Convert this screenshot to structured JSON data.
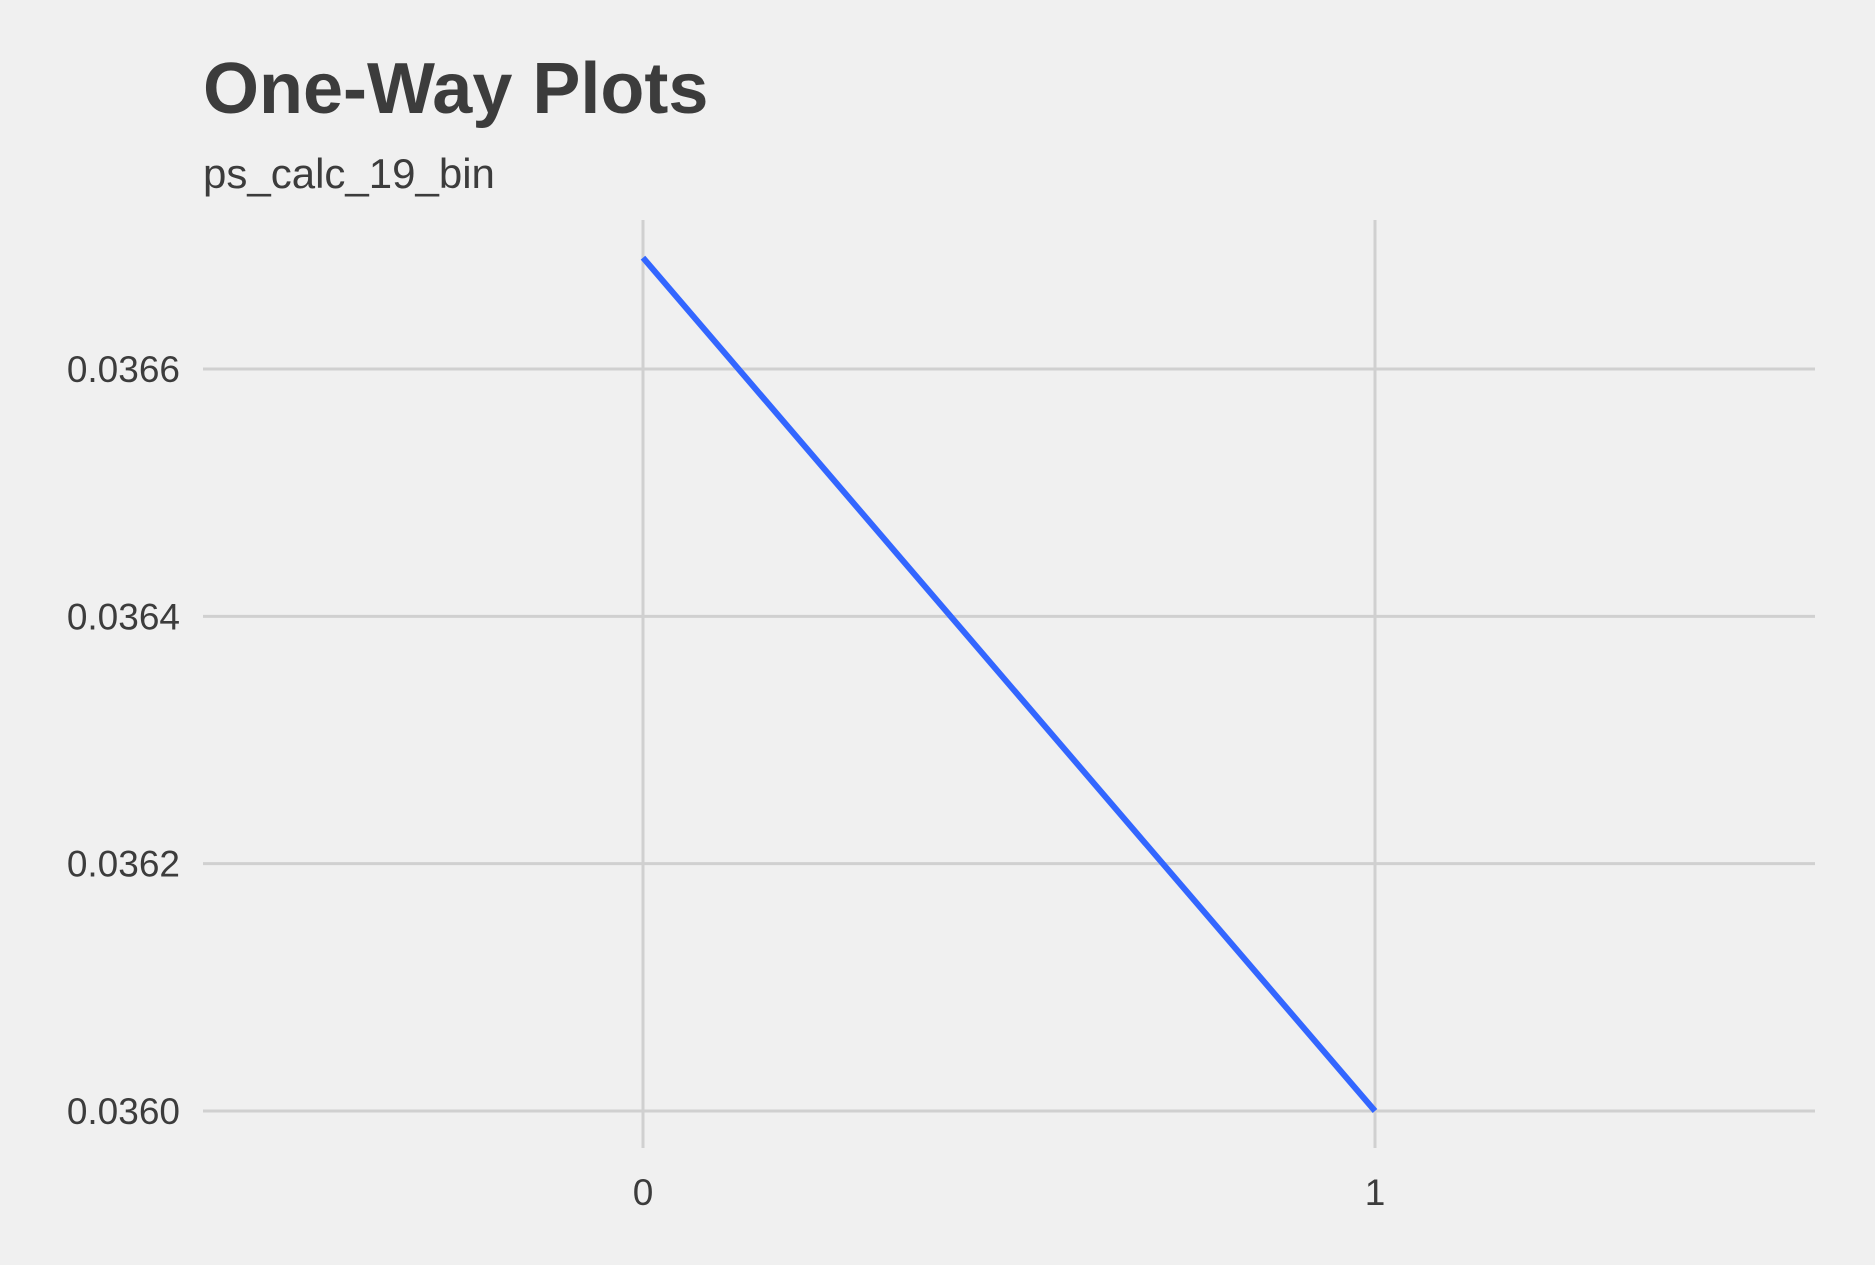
{
  "chart_data": {
    "type": "line",
    "title": "One-Way Plots",
    "subtitle": "ps_calc_19_bin",
    "xlabel": "",
    "ylabel": "",
    "categories": [
      "0",
      "1"
    ],
    "series": [
      {
        "values": [
          0.03669,
          0.036
        ]
      }
    ],
    "yticks": [
      0.036,
      0.0362,
      0.0364,
      0.0366
    ],
    "ytick_labels": [
      "0.0360",
      "0.0362",
      "0.0364",
      "0.0366"
    ],
    "ylim": [
      0.03597,
      0.03672
    ],
    "grid": true,
    "legend": "none",
    "line_color": "#3366ff",
    "grid_color": "#d0d0d0",
    "background": "#f0f0f0"
  }
}
